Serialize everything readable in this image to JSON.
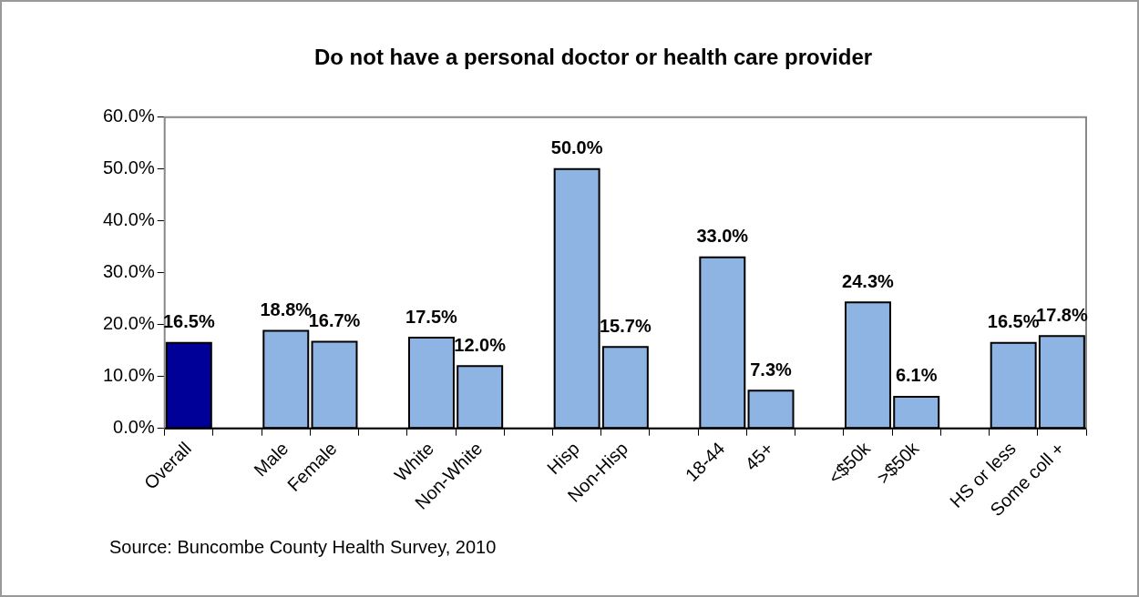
{
  "chart_data": {
    "type": "bar",
    "title": "Do not have a personal doctor or health care provider",
    "categories": [
      "Overall",
      null,
      "Male",
      "Female",
      null,
      "White",
      "Non-White",
      null,
      "Hisp",
      "Non-Hisp",
      null,
      "18-44",
      "45+",
      null,
      "<$50k",
      ">$50k",
      null,
      "HS or less",
      "Some coll +"
    ],
    "values": [
      16.5,
      null,
      18.8,
      16.7,
      null,
      17.5,
      12.0,
      null,
      50.0,
      15.7,
      null,
      33.0,
      7.3,
      null,
      24.3,
      6.1,
      null,
      16.5,
      17.8
    ],
    "value_labels": [
      "16.5%",
      null,
      "18.8%",
      "16.7%",
      null,
      "17.5%",
      "12.0%",
      null,
      "50.0%",
      "15.7%",
      null,
      "33.0%",
      "7.3%",
      null,
      "24.3%",
      "6.1%",
      null,
      "16.5%",
      "17.8%"
    ],
    "colors": [
      "#000099",
      null,
      "#8db4e2",
      "#8db4e2",
      null,
      "#8db4e2",
      "#8db4e2",
      null,
      "#8db4e2",
      "#8db4e2",
      null,
      "#8db4e2",
      "#8db4e2",
      null,
      "#8db4e2",
      "#8db4e2",
      null,
      "#8db4e2",
      "#8db4e2"
    ],
    "ylim": [
      0,
      60
    ],
    "yticks": [
      {
        "value": 0,
        "label": "0.0%"
      },
      {
        "value": 10,
        "label": "10.0%"
      },
      {
        "value": 20,
        "label": "20.0%"
      },
      {
        "value": 30,
        "label": "30.0%"
      },
      {
        "value": 40,
        "label": "40.0%"
      },
      {
        "value": 50,
        "label": "50.0%"
      },
      {
        "value": 60,
        "label": "60.0%"
      }
    ],
    "grid": false,
    "legend": false,
    "annotations": [
      "Source: Buncombe County Health Survey, 2010"
    ]
  }
}
